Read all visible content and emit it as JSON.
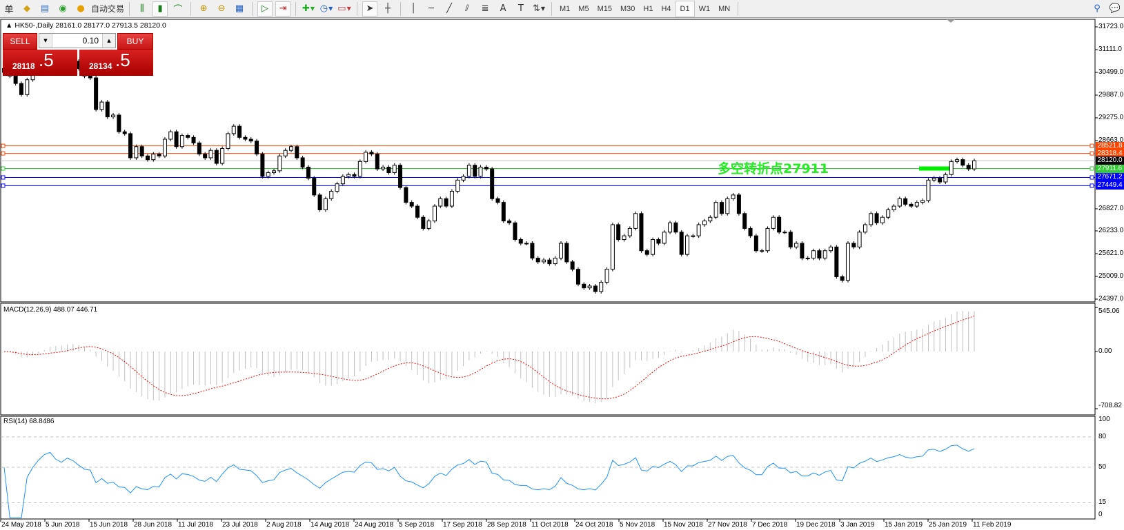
{
  "toolbar": {
    "left_label": "单",
    "auto_trade": "自动交易",
    "timeframes": [
      "M1",
      "M5",
      "M15",
      "M30",
      "H1",
      "H4",
      "D1",
      "W1",
      "MN"
    ],
    "active_timeframe": "D1"
  },
  "chart": {
    "symbol_info": "HK50-,Daily  28161.0 28177.0 27913.5 28120.0",
    "trade_panel": {
      "sell_label": "SELL",
      "buy_label": "BUY",
      "lot": "0.10",
      "sell_price_main": "28118",
      "sell_price_pip": ".5",
      "buy_price_main": "28134",
      "buy_price_pip": ".5"
    },
    "price_axis": [
      "31723.0",
      "31111.0",
      "30499.0",
      "29887.0",
      "29275.0",
      "28663.0",
      "26827.0",
      "26233.0",
      "25621.0",
      "25009.0",
      "24397.0"
    ],
    "price_axis_values": [
      31723,
      31111,
      30499,
      29887,
      29275,
      28663,
      26827,
      26233,
      25621,
      25009,
      24397
    ],
    "price_range": [
      24397,
      31723
    ],
    "hlines": [
      {
        "label": "28521.8",
        "value": 28521.8,
        "color": "#ff4500"
      },
      {
        "label": "28318.4",
        "value": 28318.4,
        "color": "#ff4500"
      },
      {
        "label": "28120.0",
        "value": 28120.0,
        "color": "#000000",
        "line": "#c0c0c0"
      },
      {
        "label": "27911.6",
        "value": 27911.6,
        "color": "#32cd32"
      },
      {
        "label": "27671.2",
        "value": 27671.2,
        "color": "#0000ff"
      },
      {
        "label": "27449.4",
        "value": 27449.4,
        "color": "#0000ff"
      }
    ],
    "pivot_text": "多空转折点27911",
    "pivot_color": "#00ee00"
  },
  "chart_data": {
    "type": "candlestick",
    "symbol": "HK50-",
    "timeframe": "Daily",
    "close": [
      30500,
      30400,
      30200,
      29900,
      30300,
      30500,
      30700,
      30900,
      31000,
      30800,
      30700,
      30900,
      30800,
      30600,
      30400,
      30350,
      29500,
      29700,
      29300,
      29350,
      28900,
      28850,
      28200,
      28500,
      28250,
      28150,
      28300,
      28250,
      28700,
      28900,
      28500,
      28800,
      28750,
      28600,
      28300,
      28200,
      28400,
      28050,
      28450,
      28850,
      29050,
      28750,
      28700,
      28650,
      28300,
      27700,
      27800,
      27850,
      28250,
      28400,
      28500,
      28200,
      27950,
      27650,
      27200,
      26800,
      27100,
      27300,
      27500,
      27700,
      27750,
      27700,
      28100,
      28350,
      28300,
      27900,
      27950,
      27800,
      28000,
      27400,
      27000,
      26900,
      26600,
      26300,
      26500,
      26900,
      27100,
      26900,
      27300,
      27600,
      27700,
      28000,
      27700,
      27950,
      27900,
      27100,
      27000,
      26500,
      26450,
      26000,
      25900,
      25900,
      25500,
      25400,
      25450,
      25350,
      25500,
      25900,
      25400,
      25200,
      24800,
      24700,
      24750,
      24600,
      24850,
      25200,
      26400,
      26000,
      26100,
      26300,
      26700,
      25700,
      25600,
      26000,
      25900,
      26200,
      26450,
      26200,
      25600,
      26100,
      26100,
      26400,
      26500,
      26600,
      27000,
      26700,
      27100,
      27200,
      26700,
      26300,
      26100,
      25700,
      25700,
      26300,
      26600,
      26200,
      26200,
      25800,
      25900,
      25500,
      25500,
      25700,
      25500,
      25700,
      25800,
      25000,
      24900,
      25900,
      25800,
      26200,
      26400,
      26700,
      26450,
      26600,
      26800,
      26900,
      27100,
      26950,
      26900,
      27000,
      27050,
      27600,
      27650,
      27550,
      27750,
      28100,
      28150,
      28000,
      27900,
      28120
    ],
    "date_labels": [
      "24 May 2018",
      "5 Jun 2018",
      "15 Jun 2018",
      "28 Jun 2018",
      "11 Jul 2018",
      "23 Jul 2018",
      "2 Aug 2018",
      "14 Aug 2018",
      "24 Aug 2018",
      "5 Sep 2018",
      "17 Sep 2018",
      "28 Sep 2018",
      "11 Oct 2018",
      "24 Oct 2018",
      "5 Nov 2018",
      "15 Nov 2018",
      "27 Nov 2018",
      "7 Dec 2018",
      "19 Dec 2018",
      "3 Jan 2019",
      "15 Jan 2019",
      "25 Jan 2019",
      "11 Feb 2019"
    ]
  },
  "macd": {
    "label": "MACD(12,26,9) 488.07 446.71",
    "axis": [
      "545.06",
      "0.00",
      "-708.82"
    ],
    "range": [
      -708.82,
      545.06
    ],
    "hist_color": "#c0c0c0",
    "signal_color": "#ff0000"
  },
  "rsi": {
    "label": "RSI(14) 68.8486",
    "axis": [
      "100",
      "80",
      "50",
      "15",
      "0"
    ],
    "levels": [
      80,
      50,
      15
    ],
    "line_color": "#1e90ff"
  }
}
